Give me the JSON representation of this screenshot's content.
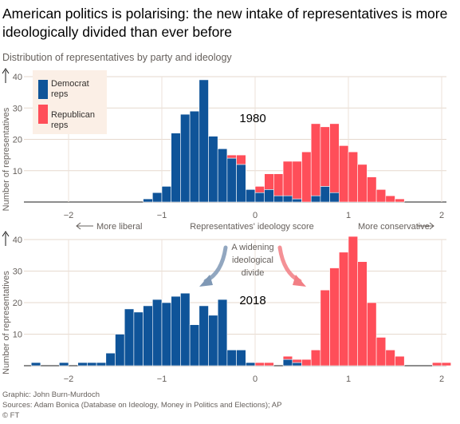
{
  "title": "American politics is polarising: the new intake of representatives is more ideologically divided than ever before",
  "subtitle": "Distribution of representatives by party and ideology",
  "ylabel": "Number of representatives",
  "xaxis_label": "Representatives' ideology score",
  "more_liberal": "More liberal",
  "more_conservative": "More conservative",
  "annotation": [
    "A widening",
    "ideological",
    "divide"
  ],
  "legend": {
    "democrat": [
      "Democrat",
      "reps"
    ],
    "republican": [
      "Republican",
      "reps"
    ]
  },
  "colors": {
    "democrat": "#0f5499",
    "republican": "#ff4e59",
    "legend_bg": "#fbefe6",
    "arrow": "#1b1b1b"
  },
  "credits": {
    "graphic": "Graphic: John Burn-Murdoch",
    "sources": "Sources: Adam Bonica (Database on Ideology, Money in Politics and Elections); AP",
    "copyright": "© FT"
  },
  "chart_data": [
    {
      "type": "bar",
      "title": "1980",
      "stacked": true,
      "bin_width": 0.1,
      "x_ticks": [
        -2,
        -1,
        0,
        1,
        2
      ],
      "y_ticks": [
        0,
        10,
        20,
        30,
        40
      ],
      "xlim": [
        -2.35,
        2.1
      ],
      "ylim": [
        0,
        40
      ],
      "series": [
        {
          "name": "Democrat reps",
          "bins": [
            [
              -1.15,
              1
            ],
            [
              -1.05,
              3
            ],
            [
              -0.95,
              5
            ],
            [
              -0.85,
              22
            ],
            [
              -0.75,
              28
            ],
            [
              -0.65,
              29
            ],
            [
              -0.55,
              39
            ],
            [
              -0.45,
              21
            ],
            [
              -0.35,
              17
            ],
            [
              -0.25,
              14
            ],
            [
              -0.15,
              12
            ],
            [
              -0.05,
              4
            ],
            [
              0.05,
              3
            ],
            [
              0.15,
              4
            ],
            [
              0.25,
              2
            ],
            [
              0.35,
              2
            ],
            [
              0.45,
              1
            ],
            [
              0.65,
              2
            ],
            [
              0.75,
              5
            ],
            [
              0.85,
              3
            ]
          ]
        },
        {
          "name": "Republican reps",
          "bins": [
            [
              -0.25,
              1
            ],
            [
              -0.15,
              3
            ],
            [
              0.05,
              2
            ],
            [
              0.15,
              5
            ],
            [
              0.25,
              7
            ],
            [
              0.35,
              11
            ],
            [
              0.45,
              12
            ],
            [
              0.55,
              16
            ],
            [
              0.65,
              23
            ],
            [
              0.75,
              19
            ],
            [
              0.85,
              22
            ],
            [
              0.95,
              18
            ],
            [
              1.05,
              16
            ],
            [
              1.15,
              12
            ],
            [
              1.25,
              8
            ],
            [
              1.35,
              4
            ],
            [
              1.45,
              2
            ],
            [
              1.55,
              1
            ]
          ]
        }
      ]
    },
    {
      "type": "bar",
      "title": "2018",
      "stacked": true,
      "bin_width": 0.1,
      "x_ticks": [
        -2,
        -1,
        0,
        1,
        2
      ],
      "y_ticks": [
        0,
        10,
        20,
        30,
        40
      ],
      "xlim": [
        -2.35,
        2.1
      ],
      "ylim": [
        0,
        40
      ],
      "series": [
        {
          "name": "Democrat reps",
          "bins": [
            [
              -2.35,
              1
            ],
            [
              -2.05,
              1
            ],
            [
              -1.85,
              1
            ],
            [
              -1.75,
              1
            ],
            [
              -1.65,
              1
            ],
            [
              -1.55,
              4
            ],
            [
              -1.45,
              10
            ],
            [
              -1.35,
              18
            ],
            [
              -1.25,
              17
            ],
            [
              -1.15,
              19
            ],
            [
              -1.05,
              21
            ],
            [
              -0.95,
              20
            ],
            [
              -0.85,
              22
            ],
            [
              -0.75,
              23
            ],
            [
              -0.65,
              13
            ],
            [
              -0.55,
              19
            ],
            [
              -0.45,
              16
            ],
            [
              -0.35,
              21
            ],
            [
              -0.25,
              5
            ],
            [
              -0.15,
              5
            ],
            [
              -0.05,
              1
            ],
            [
              0.35,
              2
            ],
            [
              0.45,
              1
            ]
          ]
        },
        {
          "name": "Republican reps",
          "bins": [
            [
              0.05,
              1
            ],
            [
              0.15,
              1
            ],
            [
              0.35,
              1
            ],
            [
              0.45,
              1
            ],
            [
              0.55,
              2
            ],
            [
              0.65,
              5
            ],
            [
              0.75,
              24
            ],
            [
              0.85,
              31
            ],
            [
              0.95,
              36
            ],
            [
              1.05,
              41
            ],
            [
              1.15,
              33
            ],
            [
              1.25,
              20
            ],
            [
              1.35,
              9
            ],
            [
              1.45,
              5
            ],
            [
              1.55,
              3
            ],
            [
              1.95,
              1
            ],
            [
              2.05,
              1
            ]
          ]
        }
      ]
    }
  ]
}
